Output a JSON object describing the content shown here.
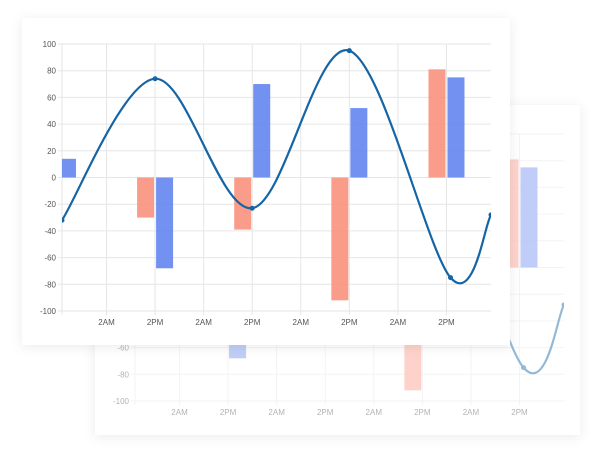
{
  "chart_data": {
    "type": "bar+line",
    "title": "",
    "xlabel": "",
    "ylabel": "",
    "ylim": [
      -100,
      100
    ],
    "yticks": [
      "100",
      "80",
      "60",
      "40",
      "20",
      "0",
      "-20",
      "-40",
      "-60",
      "-80",
      "-100"
    ],
    "x_hours_range": [
      15,
      121
    ],
    "xticks": [
      {
        "hour": 26,
        "label": "2AM"
      },
      {
        "hour": 38,
        "label": "2PM"
      },
      {
        "hour": 50,
        "label": "2AM"
      },
      {
        "hour": 62,
        "label": "2PM"
      },
      {
        "hour": 74,
        "label": "2AM"
      },
      {
        "hour": 86,
        "label": "2PM"
      },
      {
        "hour": 98,
        "label": "2AM"
      },
      {
        "hour": 110,
        "label": "2PM"
      }
    ],
    "grid": true,
    "bar_hours": [
      14,
      38,
      62,
      86,
      110
    ],
    "series": [
      {
        "kind": "bar",
        "color": "#f9917d",
        "values": [
          null,
          -30,
          -39,
          -92,
          81
        ]
      },
      {
        "kind": "bar",
        "color": "#6385ee",
        "values": [
          14,
          -68,
          70,
          52,
          75
        ]
      },
      {
        "kind": "line",
        "color": "#1565a6",
        "points": [
          [
            15,
            -32
          ],
          [
            38,
            74
          ],
          [
            62,
            -23
          ],
          [
            86,
            95
          ],
          [
            111,
            -75
          ],
          [
            121,
            -28
          ]
        ]
      }
    ]
  }
}
